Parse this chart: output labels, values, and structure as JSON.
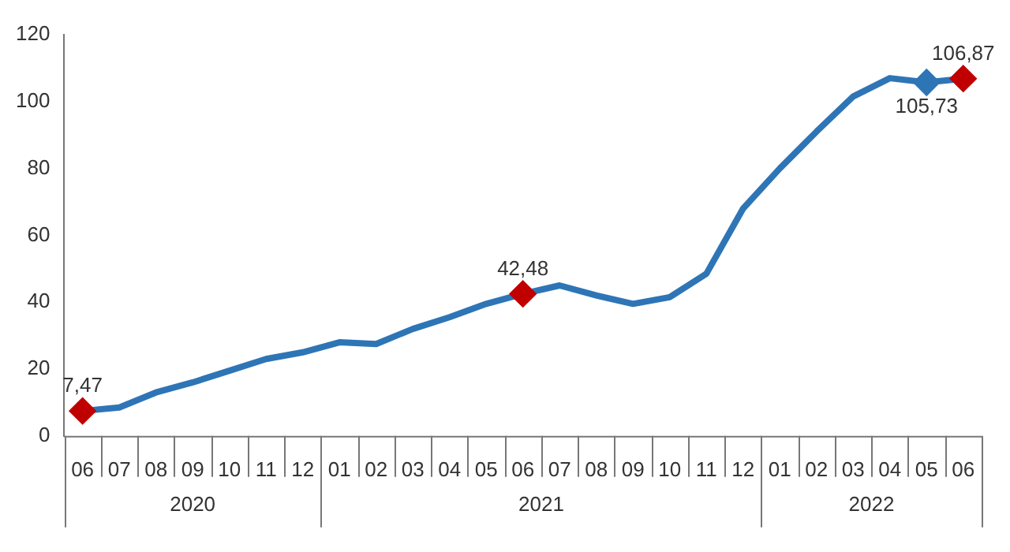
{
  "chart_data": {
    "type": "line",
    "categories": [
      "06",
      "07",
      "08",
      "09",
      "10",
      "11",
      "12",
      "01",
      "02",
      "03",
      "04",
      "05",
      "06",
      "07",
      "08",
      "09",
      "10",
      "11",
      "12",
      "01",
      "02",
      "03",
      "04",
      "05",
      "06"
    ],
    "annotations": [
      "2020",
      "2021",
      "2022"
    ],
    "series": [
      {
        "color": "#2e75b6",
        "values": [
          7.47,
          8.5,
          13,
          16,
          19.5,
          23,
          25,
          28,
          27.5,
          32,
          35.5,
          39.5,
          42.48,
          45,
          42,
          39.5,
          41.5,
          48.5,
          68,
          80,
          91,
          101.5,
          107,
          105.73,
          106.87
        ],
        "colors": [
          "#c00000",
          null,
          null,
          null,
          null,
          null,
          null,
          null,
          null,
          null,
          null,
          null,
          "#c00000",
          null,
          null,
          null,
          null,
          null,
          null,
          null,
          null,
          null,
          null,
          "#2e75b6",
          "#c00000"
        ],
        "value_labels": [
          "7,47",
          null,
          null,
          null,
          null,
          null,
          null,
          null,
          null,
          null,
          null,
          null,
          "42,48",
          null,
          null,
          null,
          null,
          null,
          null,
          null,
          null,
          null,
          null,
          "105,73",
          "106,87"
        ]
      }
    ],
    "ylim": [
      0,
      120
    ],
    "yticks": [
      0,
      20,
      40,
      60,
      80,
      100,
      120
    ],
    "grid": false,
    "legend": false,
    "line_style": "solid"
  }
}
